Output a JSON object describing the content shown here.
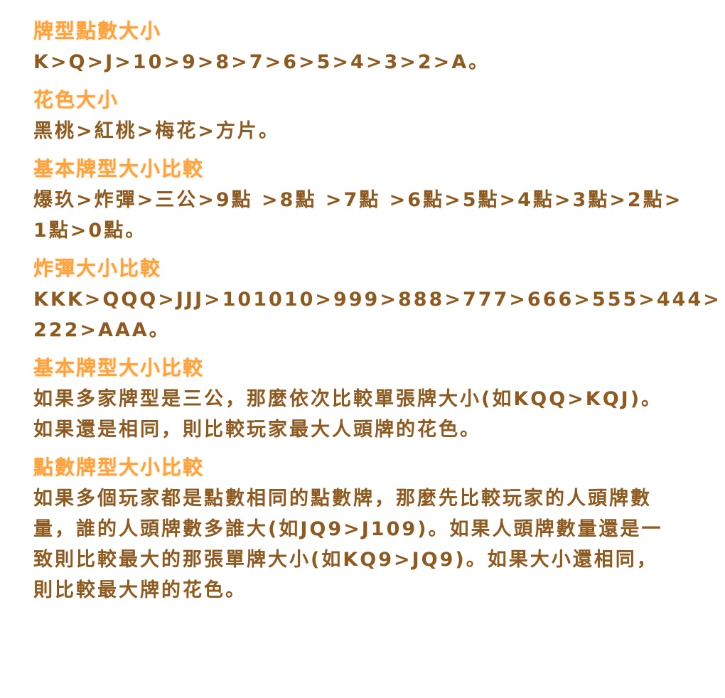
{
  "colors": {
    "heading": "#ffa23c",
    "body": "#8e5a1f"
  },
  "sections": [
    {
      "title": "牌型點數大小",
      "lines": [
        "K>Q>J>10>9>8>7>6>5>4>3>2>A。"
      ]
    },
    {
      "title": "花色大小",
      "lines": [
        "黑桃>紅桃>梅花>方片。"
      ]
    },
    {
      "title": "基本牌型大小比較",
      "lines": [
        "爆玖>炸彈>三公>9點 >8點 >7點 >6點>5點>4點>3點>2點>",
        "1點>0點。"
      ]
    },
    {
      "title": "炸彈大小比較",
      "lines": [
        "KKK>QQQ>JJJ>101010>999>888>777>666>555>444>",
        "222>AAA。"
      ]
    },
    {
      "title": "基本牌型大小比較",
      "lines": [
        "如果多家牌型是三公，那麼依次比較單張牌大小(如KQQ>KQJ)。",
        "如果還是相同，則比較玩家最大人頭牌的花色。"
      ]
    },
    {
      "title": "點數牌型大小比較",
      "lines": [
        "如果多個玩家都是點數相同的點數牌，那麼先比較玩家的人頭牌數",
        "量，誰的人頭牌數多誰大(如JQ9>J109)。如果人頭牌數量還是一",
        "致則比較最大的那張單牌大小(如KQ9>JQ9)。如果大小還相同，",
        "則比較最大牌的花色。"
      ]
    }
  ]
}
